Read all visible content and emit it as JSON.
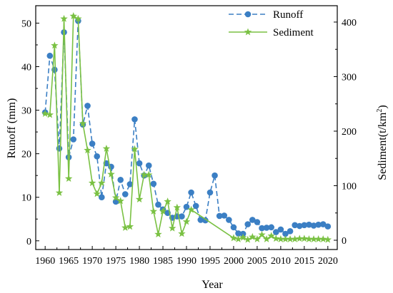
{
  "chart_data": {
    "type": "line",
    "xlabel": "Year",
    "xlim": [
      1958,
      2022
    ],
    "x_ticks": [
      1960,
      1965,
      1970,
      1975,
      1980,
      1985,
      1990,
      1995,
      2000,
      2005,
      2010,
      2015,
      2020
    ],
    "y_left": {
      "label": "Runoff (mm)",
      "lim": [
        -2,
        54
      ],
      "ticks": [
        0,
        10,
        20,
        30,
        40,
        50
      ]
    },
    "y_right": {
      "label": "Sediment(t/km",
      "label_sup": "2",
      "label_end": ")",
      "lim": [
        -17,
        430
      ],
      "ticks": [
        0,
        100,
        200,
        300,
        400
      ]
    },
    "legend": {
      "placement": "top-right"
    },
    "series": [
      {
        "name": "Runoff",
        "axis": "left",
        "color": "#3b7fc4",
        "line_style": "dashed",
        "marker": "circle",
        "x": [
          1960,
          1961,
          1962,
          1963,
          1964,
          1965,
          1966,
          1967,
          1968,
          1969,
          1970,
          1971,
          1972,
          1973,
          1974,
          1975,
          1976,
          1977,
          1978,
          1979,
          1980,
          1981,
          1982,
          1983,
          1984,
          1985,
          1986,
          1987,
          1988,
          1989,
          1990,
          1991,
          1992,
          1993,
          1994,
          1995,
          1996,
          1997,
          1998,
          1999,
          2000,
          2001,
          2002,
          2003,
          2004,
          2005,
          2006,
          2007,
          2008,
          2009,
          2010,
          2011,
          2012,
          2013,
          2014,
          2015,
          2016,
          2017,
          2018,
          2019,
          2020
        ],
        "values": [
          29.5,
          42.5,
          39.3,
          21.2,
          47.9,
          19.2,
          23.3,
          50.5,
          26.7,
          31.0,
          22.3,
          19.4,
          10.0,
          17.8,
          17.0,
          9.0,
          14.0,
          10.7,
          13.0,
          27.9,
          17.8,
          15.0,
          17.3,
          13.1,
          8.3,
          7.2,
          6.4,
          5.3,
          5.6,
          5.6,
          7.8,
          11.1,
          8.0,
          4.8,
          4.7,
          11.1,
          15.0,
          5.7,
          5.8,
          4.8,
          3.1,
          1.7,
          1.6,
          3.8,
          4.8,
          4.3,
          2.9,
          3.0,
          3.1,
          2.0,
          2.6,
          1.6,
          2.2,
          3.6,
          3.4,
          3.6,
          3.7,
          3.5,
          3.7,
          3.8,
          3.3
        ]
      },
      {
        "name": "Sediment",
        "axis": "right",
        "color": "#7ac143",
        "line_style": "solid",
        "marker": "star",
        "x": [
          1960,
          1961,
          1962,
          1963,
          1964,
          1965,
          1966,
          1967,
          1968,
          1969,
          1970,
          1971,
          1972,
          1973,
          1974,
          1975,
          1976,
          1977,
          1978,
          1979,
          1980,
          1981,
          1982,
          1983,
          1984,
          1985,
          1986,
          1987,
          1988,
          1989,
          1990,
          1991,
          2000,
          2001,
          2002,
          2003,
          2004,
          2005,
          2006,
          2007,
          2008,
          2009,
          2010,
          2011,
          2012,
          2013,
          2014,
          2015,
          2016,
          2017,
          2018,
          2019,
          2020
        ],
        "values": [
          232,
          230,
          357,
          87,
          406,
          113,
          411,
          406,
          214,
          165,
          105,
          85,
          105,
          168,
          121,
          78,
          72,
          23,
          25,
          167,
          75,
          120,
          120,
          53,
          11,
          53,
          71,
          22,
          60,
          12,
          34,
          56,
          4,
          2,
          5,
          1,
          6,
          2,
          10,
          2,
          8,
          3,
          2,
          2,
          2,
          2,
          3,
          3,
          2,
          2,
          2,
          2,
          1
        ]
      }
    ]
  }
}
